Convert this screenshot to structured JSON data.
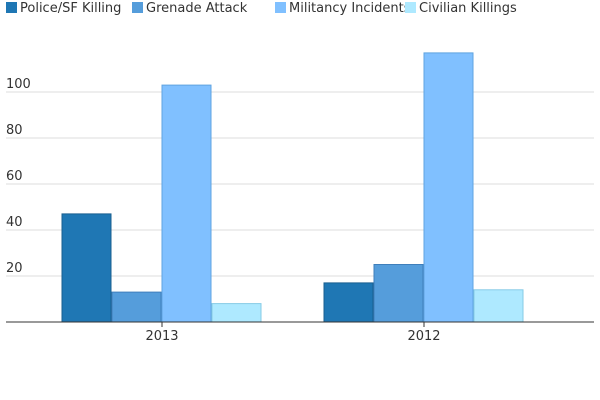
{
  "chart_data": {
    "type": "bar",
    "categories": [
      "2013",
      "2012"
    ],
    "series": [
      {
        "name": "Police/SF Killing",
        "color": "#1f77b4",
        "stroke": "#1a5f8f",
        "values": [
          47,
          17
        ]
      },
      {
        "name": "Grenade Attack",
        "color": "#559ddb",
        "stroke": "#3f7fbb",
        "values": [
          13,
          25
        ]
      },
      {
        "name": "Militancy Incidents",
        "color": "#80c0ff",
        "stroke": "#5fa3e0",
        "values": [
          103,
          117
        ]
      },
      {
        "name": "Civilian Killings",
        "color": "#aee9ff",
        "stroke": "#86cbe6",
        "values": [
          8,
          14
        ]
      }
    ],
    "yticks": [
      20,
      40,
      60,
      80,
      100
    ],
    "ylim": [
      0,
      120
    ],
    "grid": true,
    "legend_position": "top-left"
  }
}
